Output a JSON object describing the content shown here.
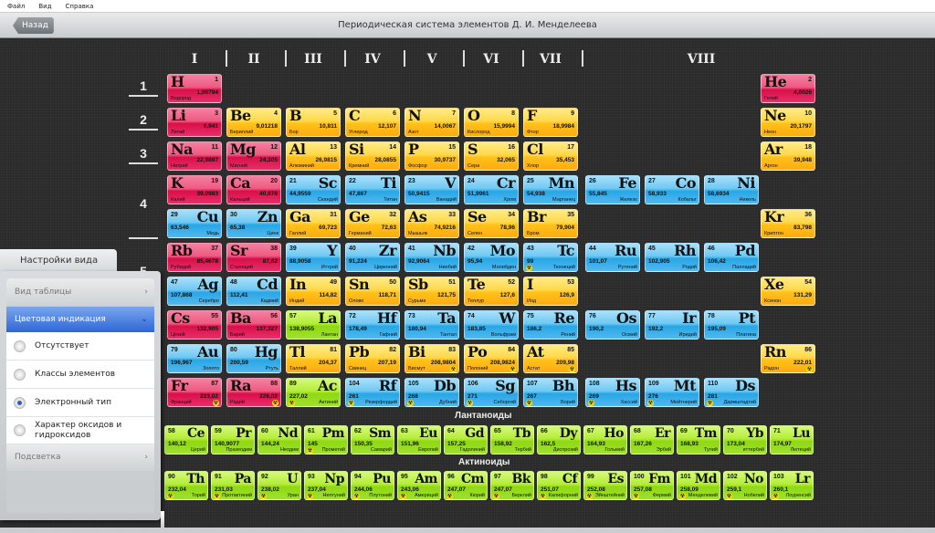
{
  "menu": [
    "Файл",
    "Вид",
    "Справка"
  ],
  "header": {
    "back": "Назад",
    "title": "Периодическая система элементов Д. И. Менделеева"
  },
  "groups": [
    "I",
    "II",
    "III",
    "IV",
    "V",
    "VI",
    "VII",
    "VIII"
  ],
  "periods": [
    "1",
    "2",
    "3",
    "4",
    "5"
  ],
  "series": {
    "lanthanides": "Лантаноиды",
    "actinides": "Актиноиды"
  },
  "colors": {
    "s": "#e6306a",
    "p": "#ffc11a",
    "d": "#28a6e6",
    "f": "#8fd812",
    "selected": "#2e66d6"
  },
  "icons": {
    "radioactive": "radioactive-icon",
    "back": "back-arrow-button",
    "chevron": "chevron-right-icon"
  },
  "settings": {
    "tab": "Настройки вида",
    "sections": [
      {
        "label": "Вид таблицы",
        "state": "collapsed"
      },
      {
        "label": "Цветовая индикация",
        "state": "expanded"
      },
      {
        "label": "Подсветка",
        "state": "collapsed"
      }
    ],
    "options": [
      {
        "label": "Отсутствует",
        "selected": false
      },
      {
        "label": "Классы элементов",
        "selected": false
      },
      {
        "label": "Электронный тип",
        "selected": true
      },
      {
        "label": "Характер оксидов и гидроксидов",
        "selected": false
      }
    ]
  },
  "elements": [
    [
      1,
      "H",
      "1,00794",
      "Водород",
      "s",
      0
    ],
    [
      2,
      "He",
      "4,0026",
      "Гелий",
      "s",
      0
    ],
    [
      3,
      "Li",
      "6,941",
      "Литий",
      "s",
      0
    ],
    [
      4,
      "Be",
      "9,01218",
      "Бериллий",
      "p",
      0
    ],
    [
      5,
      "B",
      "10,811",
      "Бор",
      "p",
      0
    ],
    [
      6,
      "C",
      "12,107",
      "Углерод",
      "p",
      0
    ],
    [
      7,
      "N",
      "14,0067",
      "Азот",
      "p",
      0
    ],
    [
      8,
      "O",
      "15,9994",
      "Кислород",
      "p",
      0
    ],
    [
      9,
      "F",
      "18,9984",
      "Фтор",
      "p",
      0
    ],
    [
      10,
      "Ne",
      "20,1797",
      "Неон",
      "p",
      0
    ],
    [
      11,
      "Na",
      "22,9897",
      "Натрий",
      "s",
      0
    ],
    [
      12,
      "Mg",
      "24,305",
      "Магний",
      "s",
      0
    ],
    [
      13,
      "Al",
      "26,9815",
      "Алюминий",
      "p",
      0
    ],
    [
      14,
      "Si",
      "28,0855",
      "Кремний",
      "p",
      0
    ],
    [
      15,
      "P",
      "30,9737",
      "Фосфор",
      "p",
      0
    ],
    [
      16,
      "S",
      "32,065",
      "Сера",
      "p",
      0
    ],
    [
      17,
      "Cl",
      "35,453",
      "Хлор",
      "p",
      0
    ],
    [
      18,
      "Ar",
      "39,948",
      "Аргон",
      "p",
      0
    ],
    [
      19,
      "K",
      "39,0983",
      "Калий",
      "s",
      0
    ],
    [
      20,
      "Ca",
      "40,078",
      "Кальций",
      "s",
      0
    ],
    [
      21,
      "Sc",
      "44,9559",
      "Скандий",
      "d",
      0
    ],
    [
      22,
      "Ti",
      "47,867",
      "Титан",
      "d",
      0
    ],
    [
      23,
      "V",
      "50,9415",
      "Ванадий",
      "d",
      0
    ],
    [
      24,
      "Cr",
      "51,9961",
      "Хром",
      "d",
      0
    ],
    [
      25,
      "Mn",
      "54,938",
      "Марганец",
      "d",
      0
    ],
    [
      26,
      "Fe",
      "55,845",
      "Железо",
      "d",
      0
    ],
    [
      27,
      "Co",
      "58,933",
      "Кобальт",
      "d",
      0
    ],
    [
      28,
      "Ni",
      "58,6934",
      "Никель",
      "d",
      0
    ],
    [
      29,
      "Cu",
      "63,546",
      "Медь",
      "d",
      0
    ],
    [
      30,
      "Zn",
      "65,38",
      "Цинк",
      "d",
      0
    ],
    [
      31,
      "Ga",
      "69,723",
      "Галлий",
      "p",
      0
    ],
    [
      32,
      "Ge",
      "72,63",
      "Германий",
      "p",
      0
    ],
    [
      33,
      "As",
      "74,9216",
      "Мышьяк",
      "p",
      0
    ],
    [
      34,
      "Se",
      "78,96",
      "Селен",
      "p",
      0
    ],
    [
      35,
      "Br",
      "79,904",
      "Бром",
      "p",
      0
    ],
    [
      36,
      "Kr",
      "83,798",
      "Криптон",
      "p",
      0
    ],
    [
      37,
      "Rb",
      "85,4678",
      "Рубидий",
      "s",
      0
    ],
    [
      38,
      "Sr",
      "87,62",
      "Стронций",
      "s",
      0
    ],
    [
      39,
      "Y",
      "88,9058",
      "Иттрий",
      "d",
      0
    ],
    [
      40,
      "Zr",
      "91,224",
      "Цирконий",
      "d",
      0
    ],
    [
      41,
      "Nb",
      "92,9064",
      "Ниобий",
      "d",
      0
    ],
    [
      42,
      "Mo",
      "95,94",
      "Молибден",
      "d",
      0
    ],
    [
      43,
      "Tc",
      "99",
      "Технеций",
      "d",
      1
    ],
    [
      44,
      "Ru",
      "101,07",
      "Рутений",
      "d",
      0
    ],
    [
      45,
      "Rh",
      "102,905",
      "Родий",
      "d",
      0
    ],
    [
      46,
      "Pd",
      "106,42",
      "Палладий",
      "d",
      0
    ],
    [
      47,
      "Ag",
      "107,868",
      "Серебро",
      "d",
      0
    ],
    [
      48,
      "Cd",
      "112,41",
      "Кадмий",
      "d",
      0
    ],
    [
      49,
      "In",
      "114,82",
      "Индий",
      "p",
      0
    ],
    [
      50,
      "Sn",
      "118,71",
      "Олово",
      "p",
      0
    ],
    [
      51,
      "Sb",
      "121,75",
      "Сурьма",
      "p",
      0
    ],
    [
      52,
      "Te",
      "127,6",
      "Теллур",
      "p",
      0
    ],
    [
      53,
      "I",
      "126,9",
      "Иод",
      "p",
      0
    ],
    [
      54,
      "Xe",
      "131,29",
      "Ксенон",
      "p",
      0
    ],
    [
      55,
      "Cs",
      "132,905",
      "Цезий",
      "s",
      0
    ],
    [
      56,
      "Ba",
      "137,327",
      "Барий",
      "s",
      0
    ],
    [
      57,
      "La",
      "138,9055",
      "Лантан",
      "f",
      0
    ],
    [
      72,
      "Hf",
      "178,49",
      "Гафний",
      "d",
      0
    ],
    [
      73,
      "Ta",
      "180,94",
      "Тантал",
      "d",
      0
    ],
    [
      74,
      "W",
      "183,85",
      "Вольфрам",
      "d",
      0
    ],
    [
      75,
      "Re",
      "186,2",
      "Рений",
      "d",
      0
    ],
    [
      76,
      "Os",
      "190,2",
      "Осмий",
      "d",
      0
    ],
    [
      77,
      "Ir",
      "192,2",
      "Иридий",
      "d",
      0
    ],
    [
      78,
      "Pt",
      "195,09",
      "Платина",
      "d",
      0
    ],
    [
      79,
      "Au",
      "196,967",
      "Золото",
      "d",
      0
    ],
    [
      80,
      "Hg",
      "200,59",
      "Ртуть",
      "d",
      0
    ],
    [
      81,
      "Tl",
      "204,37",
      "Таллий",
      "p",
      0
    ],
    [
      82,
      "Pb",
      "207,19",
      "Свинец",
      "p",
      0
    ],
    [
      83,
      "Bi",
      "208,9804",
      "Висмут",
      "p",
      1
    ],
    [
      84,
      "Po",
      "208,9824",
      "Полоний",
      "p",
      1
    ],
    [
      85,
      "At",
      "209,98",
      "Астат",
      "p",
      1
    ],
    [
      86,
      "Rn",
      "222,01",
      "Радон",
      "p",
      1
    ],
    [
      87,
      "Fr",
      "223,02",
      "Франций",
      "s",
      1
    ],
    [
      88,
      "Ra",
      "226,02",
      "Радий",
      "s",
      1
    ],
    [
      89,
      "Ac",
      "227,02",
      "Актиний",
      "f",
      1
    ],
    [
      104,
      "Rf",
      "261",
      "Резерфордий",
      "d",
      1
    ],
    [
      105,
      "Db",
      "268",
      "Дубний",
      "d",
      1
    ],
    [
      106,
      "Sg",
      "271",
      "Сиборгий",
      "d",
      1
    ],
    [
      107,
      "Bh",
      "267",
      "Борий",
      "d",
      1
    ],
    [
      108,
      "Hs",
      "269",
      "Хассий",
      "d",
      1
    ],
    [
      109,
      "Mt",
      "276",
      "Мейтнерий",
      "d",
      1
    ],
    [
      110,
      "Ds",
      "281",
      "Дармштадтий",
      "d",
      1
    ],
    [
      58,
      "Ce",
      "140,12",
      "Церий",
      "f",
      0
    ],
    [
      59,
      "Pr",
      "140,9077",
      "Празеодим",
      "f",
      0
    ],
    [
      60,
      "Nd",
      "144,24",
      "Неодим",
      "f",
      0
    ],
    [
      61,
      "Pm",
      "145",
      "Прометий",
      "f",
      1
    ],
    [
      62,
      "Sm",
      "150,35",
      "Самарий",
      "f",
      0
    ],
    [
      63,
      "Eu",
      "151,96",
      "Европий",
      "f",
      0
    ],
    [
      64,
      "Gd",
      "157,25",
      "Гадолиний",
      "f",
      0
    ],
    [
      65,
      "Tb",
      "158,92",
      "Тербий",
      "f",
      0
    ],
    [
      66,
      "Dy",
      "162,5",
      "Диспрозий",
      "f",
      0
    ],
    [
      67,
      "Ho",
      "164,93",
      "Гольмий",
      "f",
      0
    ],
    [
      68,
      "Er",
      "167,26",
      "Эрбий",
      "f",
      0
    ],
    [
      69,
      "Tm",
      "168,93",
      "Тулий",
      "f",
      0
    ],
    [
      70,
      "Yb",
      "173,04",
      "иттербий",
      "f",
      0
    ],
    [
      71,
      "Lu",
      "174,97",
      "Лютеций",
      "f",
      0
    ],
    [
      90,
      "Th",
      "232,04",
      "Торий",
      "f",
      1
    ],
    [
      91,
      "Pa",
      "231,03",
      "Протактиний",
      "f",
      1
    ],
    [
      92,
      "U",
      "238,02",
      "Уран",
      "f",
      1
    ],
    [
      93,
      "Np",
      "237,04",
      "Нептуний",
      "f",
      1
    ],
    [
      94,
      "Pu",
      "244,06",
      "Плутоний",
      "f",
      1
    ],
    [
      95,
      "Am",
      "243,06",
      "Америций",
      "f",
      1
    ],
    [
      96,
      "Cm",
      "247,07",
      "Кюрий",
      "f",
      1
    ],
    [
      97,
      "Bk",
      "247,07",
      "Берклий",
      "f",
      1
    ],
    [
      98,
      "Cf",
      "251,07",
      "Калифорний",
      "f",
      1
    ],
    [
      99,
      "Es",
      "252,08",
      "Эйнштейний",
      "f",
      1
    ],
    [
      100,
      "Fm",
      "257,08",
      "Фермий",
      "f",
      1
    ],
    [
      101,
      "Md",
      "258,09",
      "Менделевий",
      "f",
      1
    ],
    [
      102,
      "No",
      "259,1",
      "Нобелий",
      "f",
      1
    ],
    [
      103,
      "Lr",
      "260,1",
      "Лоуренсий",
      "f",
      1
    ]
  ]
}
